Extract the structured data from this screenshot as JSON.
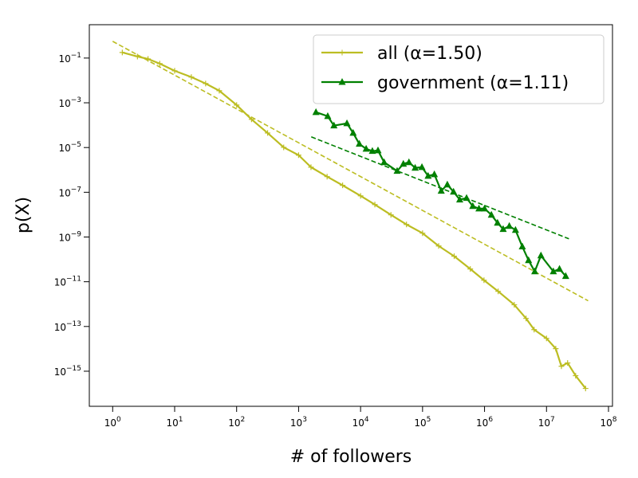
{
  "chart_data": {
    "type": "line",
    "log_x": true,
    "log_y": true,
    "xlabel": "# of followers",
    "ylabel": "p(X)",
    "xlim": [
      0.42,
      116000000.0
    ],
    "ylim": [
      2.7e-17,
      3.1
    ],
    "xticks": [
      {
        "value": 1,
        "label": "10^0"
      },
      {
        "value": 10,
        "label": "10^1"
      },
      {
        "value": 100,
        "label": "10^2"
      },
      {
        "value": 1000,
        "label": "10^3"
      },
      {
        "value": 10000,
        "label": "10^4"
      },
      {
        "value": 100000,
        "label": "10^5"
      },
      {
        "value": 1000000,
        "label": "10^6"
      },
      {
        "value": 10000000,
        "label": "10^7"
      },
      {
        "value": 100000000,
        "label": "10^8"
      }
    ],
    "yticks": [
      {
        "value": 0.1,
        "label": "10^−1"
      },
      {
        "value": 0.001,
        "label": "10^−3"
      },
      {
        "value": 1e-05,
        "label": "10^−5"
      },
      {
        "value": 1e-07,
        "label": "10^−7"
      },
      {
        "value": 1e-09,
        "label": "10^−9"
      },
      {
        "value": 1e-11,
        "label": "10^−11"
      },
      {
        "value": 1e-13,
        "label": "10^−13"
      },
      {
        "value": 1e-15,
        "label": "10^−15"
      }
    ],
    "legend": "upper right",
    "series": [
      {
        "name": "all (α=1.50)",
        "color": "#bcbd22",
        "marker": "plus",
        "x": [
          1.43,
          2.51,
          3.72,
          5.75,
          10,
          18.6,
          31.6,
          52.5,
          100,
          174,
          316,
          575,
          1000,
          1585,
          2884,
          5129,
          10000,
          17000,
          30900,
          55000,
          100000,
          182000,
          324000,
          589000,
          980000,
          1660000,
          3020000,
          4680000,
          6310000,
          10000000,
          14100000,
          17400000,
          21900000,
          29500000,
          42700000
        ],
        "values": [
          0.178,
          0.117,
          0.0912,
          0.0562,
          0.0269,
          0.0141,
          0.00724,
          0.00347,
          0.000794,
          0.000182,
          4.47e-05,
          1.02e-05,
          4.57e-06,
          1.32e-06,
          5.01e-07,
          2.04e-07,
          6.92e-08,
          2.82e-08,
          9.77e-09,
          3.63e-09,
          1.48e-09,
          3.98e-10,
          1.38e-10,
          3.72e-11,
          1.17e-11,
          3.72e-12,
          9.33e-13,
          2.29e-13,
          7.24e-14,
          2.95e-14,
          1.02e-14,
          1.66e-15,
          2.34e-15,
          6.31e-16,
          1.7e-16
        ]
      },
      {
        "name": "government (α=1.11)",
        "color": "#008000",
        "marker": "triangle",
        "x": [
          1905,
          2951,
          3715,
          6026,
          7586,
          9550,
          12300,
          15500,
          19100,
          24000,
          38900,
          49000,
          60300,
          75900,
          97700,
          123000,
          155000,
          200000,
          251000,
          316000,
          398000,
          513000,
          646000,
          813000,
          1000000,
          1290000,
          1620000,
          2000000,
          2510000,
          3160000,
          4070000,
          5130000,
          6460000,
          8130000,
          12900000,
          16200000,
          20400000
        ],
        "values": [
          0.00038,
          0.000251,
          9.55e-05,
          0.00012,
          4.47e-05,
          1.45e-05,
          8.71e-06,
          6.92e-06,
          7.41e-06,
          2.19e-06,
          8.91e-07,
          1.86e-06,
          2.19e-06,
          1.23e-06,
          1.32e-06,
          5.37e-07,
          6.31e-07,
          1.15e-07,
          2.19e-07,
          1.05e-07,
          4.68e-08,
          5.5e-08,
          2.4e-08,
          1.86e-08,
          1.86e-08,
          9.77e-09,
          4.27e-09,
          2.24e-09,
          3.09e-09,
          2.04e-09,
          3.72e-10,
          9.12e-11,
          2.88e-11,
          1.48e-10,
          2.88e-11,
          3.72e-11,
          1.78e-11
        ]
      }
    ],
    "fits": [
      {
        "color": "#bcbd22",
        "x": [
          1,
          47000000
        ],
        "values": [
          0.56,
          1.41e-12
        ]
      },
      {
        "color": "#008000",
        "x": [
          1600,
          23000000
        ],
        "values": [
          3e-05,
          8.3e-10
        ]
      }
    ]
  }
}
